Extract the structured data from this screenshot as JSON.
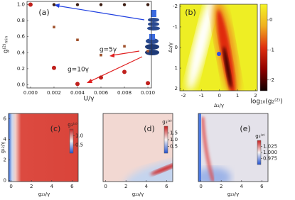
{
  "chart_data": [
    {
      "type": "scatter",
      "label": "(a)",
      "x_label": "U/γ",
      "y_label": "g⁽²⁾ₘᵢₙ",
      "xlim": [
        -0.0003,
        0.0103
      ],
      "ylim": [
        -0.04,
        1.04
      ],
      "xticks": [
        {
          "value": 0,
          "label": "0.000"
        },
        {
          "value": 0.002,
          "label": "0.002"
        },
        {
          "value": 0.004,
          "label": "0.004"
        },
        {
          "value": 0.006,
          "label": "0.006"
        },
        {
          "value": 0.008,
          "label": "0.008"
        },
        {
          "value": 0.01,
          "label": "0.010"
        }
      ],
      "yticks": [
        {
          "value": 0,
          "label": "0.0"
        },
        0.2,
        0.4,
        0.6,
        0.8,
        {
          "value": 1,
          "label": "1.0"
        }
      ],
      "x": [
        0,
        0.002,
        0.004,
        0.006,
        0.008,
        0.01
      ],
      "series": [
        {
          "color": "#3b1c12",
          "values": [
            1,
            1,
            1,
            1,
            1,
            1
          ]
        },
        {
          "name": "g=5γ",
          "color": "#a0522d",
          "values": [
            1,
            0.72,
            0.56,
            0.37,
            0.48,
            0.42
          ]
        },
        {
          "name": "g=10γ",
          "color": "#c0201c",
          "values": [
            1,
            0.21,
            0.01,
            0.09,
            0.16,
            0.02
          ]
        }
      ]
    },
    {
      "type": "heatmap",
      "label": "(b)",
      "x_label": "Δ₁/γ",
      "y_label": "Δ₂/γ",
      "colorbar_label": "log₁₀(g₂⁽²⁾)",
      "xlim": [
        -2.2,
        2.1
      ],
      "ylim": [
        2.1,
        -2.1
      ],
      "xticks": [
        -2,
        -1,
        0,
        1,
        2
      ],
      "yticks": [
        -2,
        -1,
        0,
        1,
        2
      ],
      "clim": [
        -2.36,
        0.52
      ],
      "cticks": [
        0,
        -1,
        -2
      ]
    },
    {
      "type": "heatmap",
      "label": "(c)",
      "x_label": "g₂₃/γ",
      "y_label": "g₁₂/γ",
      "colorbar_label": "g₃⁽²⁾",
      "xlim": [
        -0.25,
        6.6
      ],
      "ylim": [
        -0.1,
        6.5
      ],
      "xticks": [
        0,
        2,
        4,
        6
      ],
      "yticks": [
        0,
        2,
        4,
        6
      ],
      "clim": [
        0.06,
        1.375
      ],
      "cticks": [
        {
          "value": 1,
          "label": "1.0"
        },
        0.5
      ]
    },
    {
      "type": "heatmap",
      "label": "(d)",
      "x_label": "g₂₃/γ",
      "colorbar_label": "g₃⁽²⁾",
      "xlim": [
        -0.25,
        6.6
      ],
      "xticks": [
        0,
        2,
        4,
        6
      ],
      "clim": [
        0,
        2
      ],
      "cticks": [
        1.5,
        {
          "value": 1,
          "label": "1.0"
        },
        0.5
      ]
    },
    {
      "type": "heatmap",
      "label": "(e)",
      "x_label": "g₂₃/γ",
      "colorbar_label": "g₃⁽²⁾",
      "xlim": [
        -0.25,
        6.6
      ],
      "xticks": [
        0,
        2,
        4,
        6
      ],
      "clim": [
        0.95,
        1.05
      ],
      "cticks": [
        1.025,
        {
          "value": 1,
          "label": "1.000"
        },
        0.975
      ]
    }
  ]
}
